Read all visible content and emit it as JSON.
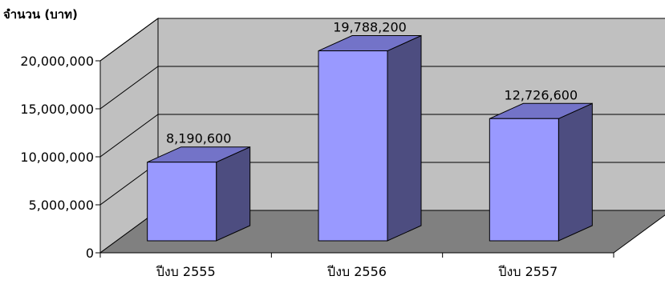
{
  "chart_data": {
    "type": "bar",
    "title": "",
    "xlabel": "",
    "ylabel": "จำนวน (บาท)",
    "categories": [
      "ปีงบ 2555",
      "ปีงบ 2556",
      "ปีงบ 2557"
    ],
    "values": [
      8190600,
      19788200,
      12726600
    ],
    "data_labels": [
      "8,190,600",
      "19,788,200",
      "12,726,600"
    ],
    "y_ticks": [
      0,
      5000000,
      10000000,
      15000000,
      20000000
    ],
    "y_tick_labels": [
      "0",
      "5,000,000",
      "10,000,000",
      "15,000,000",
      "20,000,000"
    ],
    "ylim": [
      0,
      20000000
    ],
    "grid": true,
    "legend": "none",
    "style": "3d-column",
    "colors": {
      "bar_front": "#9999FF",
      "bar_top": "#7373C8",
      "bar_side": "#4D4D80",
      "wall": "#C0C0C0",
      "floor": "#808080",
      "gridline": "#000000"
    }
  }
}
